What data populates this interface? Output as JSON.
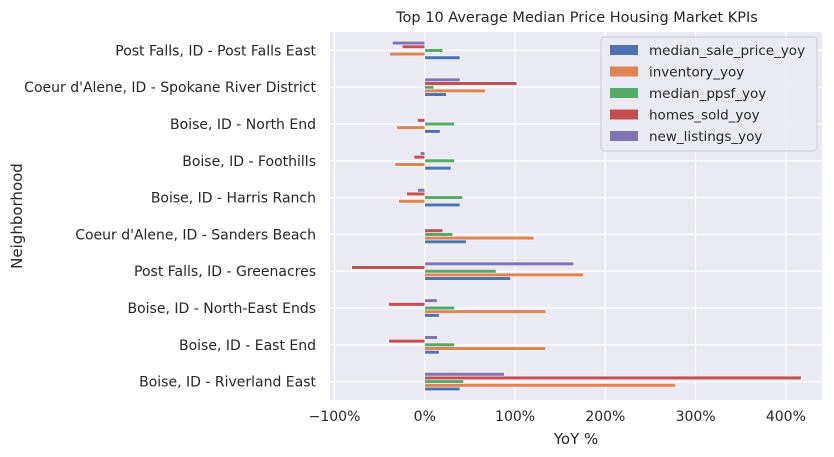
{
  "chart_data": {
    "type": "bar",
    "orientation": "horizontal",
    "title": "Top 10 Average Median Price Housing Market KPIs",
    "xlabel": "YoY %",
    "ylabel": "Neighborhood",
    "xlim": [
      -1.05,
      4.4
    ],
    "xticks": [
      -1,
      0,
      1,
      2,
      3,
      4
    ],
    "xtick_labels": [
      "−100%",
      "0%",
      "100%",
      "200%",
      "300%",
      "400%"
    ],
    "grid": true,
    "legend_position": "top-right",
    "categories": [
      "Boise, ID - Riverland East",
      "Boise, ID - East End",
      "Boise, ID - North-East Ends",
      "Post Falls, ID - Greenacres",
      "Coeur d'Alene, ID - Sanders Beach",
      "Boise, ID - Harris Ranch",
      "Boise, ID - Foothills",
      "Boise, ID - North End",
      "Coeur d'Alene, ID - Spokane River District",
      "Post Falls, ID - Post Falls East"
    ],
    "series": [
      {
        "name": "median_sale_price_yoy",
        "color": "#4c72b0",
        "values": [
          0.39,
          0.16,
          0.16,
          0.95,
          0.46,
          0.39,
          0.29,
          0.17,
          0.24,
          0.39
        ]
      },
      {
        "name": "inventory_yoy",
        "color": "#dd8452",
        "values": [
          2.78,
          1.34,
          1.34,
          1.76,
          1.21,
          -0.29,
          -0.33,
          -0.31,
          0.67,
          -0.39
        ]
      },
      {
        "name": "median_ppsf_yoy",
        "color": "#55a868",
        "values": [
          0.43,
          0.33,
          0.33,
          0.79,
          0.31,
          0.42,
          0.33,
          0.33,
          0.1,
          0.2
        ]
      },
      {
        "name": "homes_sold_yoy",
        "color": "#c44e52",
        "values": [
          4.17,
          -0.4,
          -0.4,
          -0.81,
          0.2,
          -0.2,
          -0.12,
          -0.08,
          1.02,
          -0.25
        ]
      },
      {
        "name": "new_listings_yoy",
        "color": "#8172b3",
        "values": [
          0.88,
          0.14,
          0.14,
          1.65,
          0.0,
          -0.08,
          -0.05,
          0.0,
          0.39,
          -0.36
        ]
      }
    ]
  }
}
